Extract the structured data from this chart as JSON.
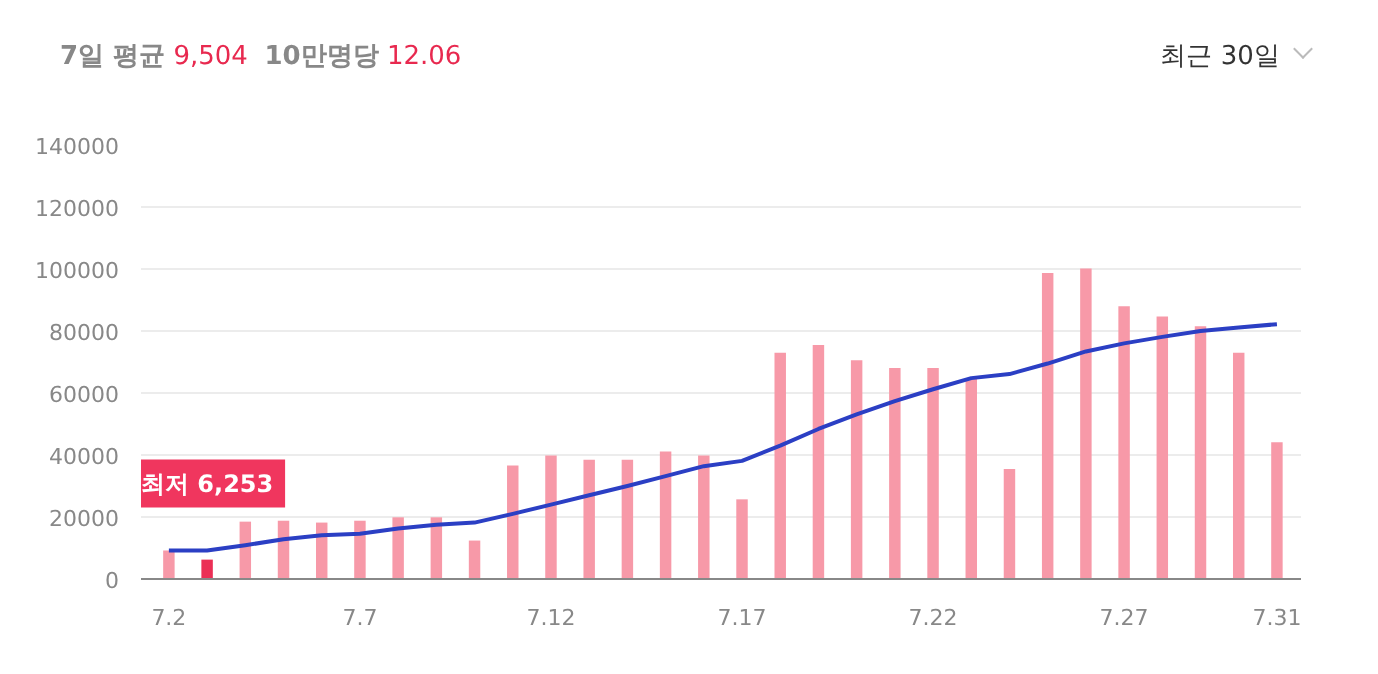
{
  "chart_data": {
    "type": "bar",
    "annotations": [
      "7일 평균 9,504",
      "10만명당 12.06",
      "최근 30일",
      {
        "text": "최저 6,253",
        "y": 6253
      }
    ],
    "categories": [
      "7.2",
      null,
      null,
      null,
      null,
      "7.7",
      null,
      null,
      null,
      null,
      "7.12",
      null,
      null,
      null,
      null,
      "7.17",
      null,
      null,
      null,
      null,
      "7.22",
      null,
      null,
      null,
      null,
      "7.27",
      null,
      null,
      null,
      "7.31"
    ],
    "series": [
      {
        "colors": [
          "#f799a8",
          "#eb2f55",
          "#f799a8",
          "#f799a8",
          "#f799a8",
          "#f799a8",
          "#f799a8",
          "#f799a8",
          "#f799a8",
          "#f799a8",
          "#f799a8",
          "#f799a8",
          "#f799a8",
          "#f799a8",
          "#f799a8",
          "#f799a8",
          "#f799a8",
          "#f799a8",
          "#f799a8",
          "#f799a8",
          "#f799a8",
          "#f799a8",
          "#f799a8",
          "#f799a8",
          "#f799a8",
          "#f799a8",
          "#f799a8",
          "#f799a8",
          "#f799a8",
          "#f799a8"
        ],
        "values": [
          9200,
          6253,
          18500,
          18800,
          18200,
          18800,
          19900,
          19900,
          12400,
          36600,
          39800,
          38500,
          38500,
          41100,
          39800,
          25700,
          73000,
          75500,
          70600,
          68100,
          68100,
          64800,
          35500,
          98700,
          100200,
          88000,
          84700,
          81500,
          73000,
          44100
        ]
      },
      {
        "type": "line",
        "color": "#2b3fc4",
        "values": [
          9200,
          9200,
          10900,
          12800,
          14100,
          14600,
          16300,
          17500,
          18200,
          21000,
          24000,
          27000,
          30000,
          33200,
          36400,
          38100,
          43000,
          48400,
          53100,
          57400,
          61200,
          64800,
          66100,
          69500,
          73400,
          76000,
          78100,
          80000,
          81100,
          82200
        ]
      }
    ],
    "ylim": [
      0,
      140000
    ],
    "yticks": [
      0,
      20000,
      40000,
      60000,
      80000,
      100000,
      120000,
      140000
    ],
    "grid": "y"
  }
}
